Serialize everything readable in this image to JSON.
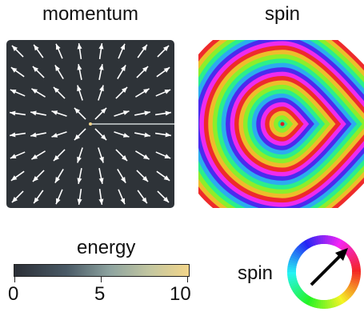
{
  "panels": {
    "momentum_title": "momentum",
    "spin_title": "spin"
  },
  "colorbar": {
    "label": "energy",
    "ticks": [
      "0",
      "5",
      "10"
    ],
    "range": [
      0,
      10
    ],
    "colors": [
      "#2b2f36",
      "#4a5a66",
      "#8ea4a0",
      "#c4c7a0",
      "#f2d58a"
    ]
  },
  "spin_wheel": {
    "label": "spin",
    "arrow_direction": "upper-right"
  },
  "colors": {
    "momentum_background": "#2e3338",
    "arrow": "#ffffff"
  }
}
